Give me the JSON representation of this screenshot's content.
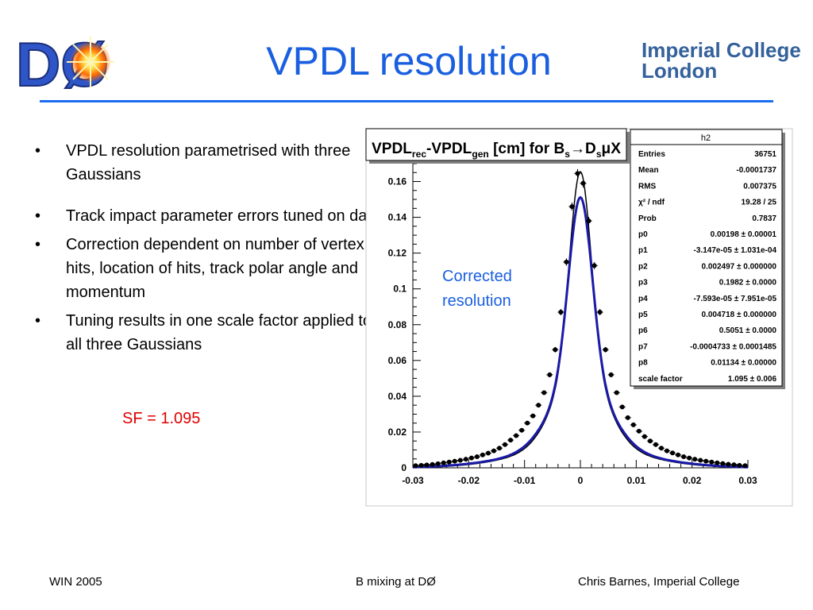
{
  "slide": {
    "title": "VPDL resolution",
    "logo_left_text": "DØ",
    "logo_right_line1": "Imperial College",
    "logo_right_line2": "London",
    "bullets": [
      "VPDL resolution parametrised with three Gaussians",
      "Track impact parameter errors tuned on data",
      "Correction dependent on number of vertex hits, location of hits, track polar angle and momentum",
      "Tuning results in one scale factor applied to all three Gaussians"
    ],
    "sf_text": "SF = 1.095",
    "annotation": "Corrected resolution",
    "footer_left": "WIN 2005",
    "footer_center": "B mixing at DØ",
    "footer_right": "Chris Barnes, Imperial College"
  },
  "chart_data": {
    "type": "scatter",
    "title_parts": {
      "a": "VPDL",
      "a_sub": "rec",
      "b": "-VPDL",
      "b_sub": "gen",
      "c": " [cm] for B",
      "c_sub": "s",
      "d": "→D",
      "d_sub": "s",
      "e": "μX"
    },
    "xlim": [
      -0.03,
      0.03
    ],
    "ylim": [
      0,
      0.17
    ],
    "x_ticks": [
      -0.03,
      -0.02,
      -0.01,
      0,
      0.01,
      0.02,
      0.03
    ],
    "x_tick_labels": [
      "-0.03",
      "-0.02",
      "-0.01",
      "0",
      "0.01",
      "0.02",
      "0.03"
    ],
    "y_ticks": [
      0,
      0.02,
      0.04,
      0.06,
      0.08,
      0.1,
      0.12,
      0.14,
      0.16
    ],
    "y_tick_labels": [
      "0",
      "0.02",
      "0.04",
      "0.06",
      "0.08",
      "0.1",
      "0.12",
      "0.14",
      "0.16"
    ],
    "points": {
      "x": [
        -0.0295,
        -0.0285,
        -0.0275,
        -0.0265,
        -0.0255,
        -0.0245,
        -0.0235,
        -0.0225,
        -0.0215,
        -0.0205,
        -0.0195,
        -0.0185,
        -0.0175,
        -0.0165,
        -0.0155,
        -0.0145,
        -0.0135,
        -0.0125,
        -0.0115,
        -0.0105,
        -0.0095,
        -0.0085,
        -0.0075,
        -0.0065,
        -0.0055,
        -0.0045,
        -0.0035,
        -0.0025,
        -0.0015,
        -0.0005,
        0.0005,
        0.0015,
        0.0025,
        0.0035,
        0.0045,
        0.0055,
        0.0065,
        0.0075,
        0.0085,
        0.0095,
        0.0105,
        0.0115,
        0.0125,
        0.0135,
        0.0145,
        0.0155,
        0.0165,
        0.0175,
        0.0185,
        0.0195,
        0.0205,
        0.0215,
        0.0225,
        0.0235,
        0.0245,
        0.0255,
        0.0265,
        0.0275,
        0.0285,
        0.0295
      ],
      "y": [
        0.0012,
        0.0014,
        0.0016,
        0.0019,
        0.0023,
        0.0028,
        0.0032,
        0.0037,
        0.0042,
        0.0048,
        0.0055,
        0.0062,
        0.0072,
        0.0082,
        0.0095,
        0.011,
        0.013,
        0.0155,
        0.018,
        0.021,
        0.025,
        0.029,
        0.035,
        0.042,
        0.052,
        0.066,
        0.087,
        0.115,
        0.146,
        0.1645,
        0.159,
        0.138,
        0.113,
        0.087,
        0.066,
        0.052,
        0.042,
        0.034,
        0.028,
        0.024,
        0.0205,
        0.0175,
        0.015,
        0.013,
        0.011,
        0.0095,
        0.0083,
        0.0072,
        0.0062,
        0.0055,
        0.0048,
        0.0042,
        0.0037,
        0.0032,
        0.0028,
        0.0024,
        0.002,
        0.0017,
        0.0014,
        0.0012
      ]
    },
    "curves": {
      "fit_color": "#1a1aa8",
      "ref_color": "#000000",
      "fit_scale": 1.095
    },
    "stats": {
      "name": "h2",
      "rows": [
        {
          "label": "Entries",
          "value": "36751"
        },
        {
          "label": "Mean",
          "value": "-0.0001737"
        },
        {
          "label": "RMS",
          "value": "0.007375"
        },
        {
          "label": "χ² / ndf",
          "value": "19.28 / 25"
        },
        {
          "label": "Prob",
          "value": "0.7837"
        },
        {
          "label": "p0",
          "value": "0.00198 ± 0.00001"
        },
        {
          "label": "p1",
          "value": "-3.147e-05 ± 1.031e-04"
        },
        {
          "label": "p2",
          "value": "0.002497 ± 0.000000"
        },
        {
          "label": "p3",
          "value": "0.1982 ± 0.0000"
        },
        {
          "label": "p4",
          "value": "-7.593e-05 ± 7.951e-05"
        },
        {
          "label": "p5",
          "value": "0.004718 ± 0.000000"
        },
        {
          "label": "p6",
          "value": "0.5051 ± 0.0000"
        },
        {
          "label": "p7",
          "value": "-0.0004733 ± 0.0001485"
        },
        {
          "label": "p8",
          "value": "0.01134 ± 0.00000"
        },
        {
          "label": "scale factor",
          "value": "1.095 ± 0.006"
        }
      ]
    }
  }
}
